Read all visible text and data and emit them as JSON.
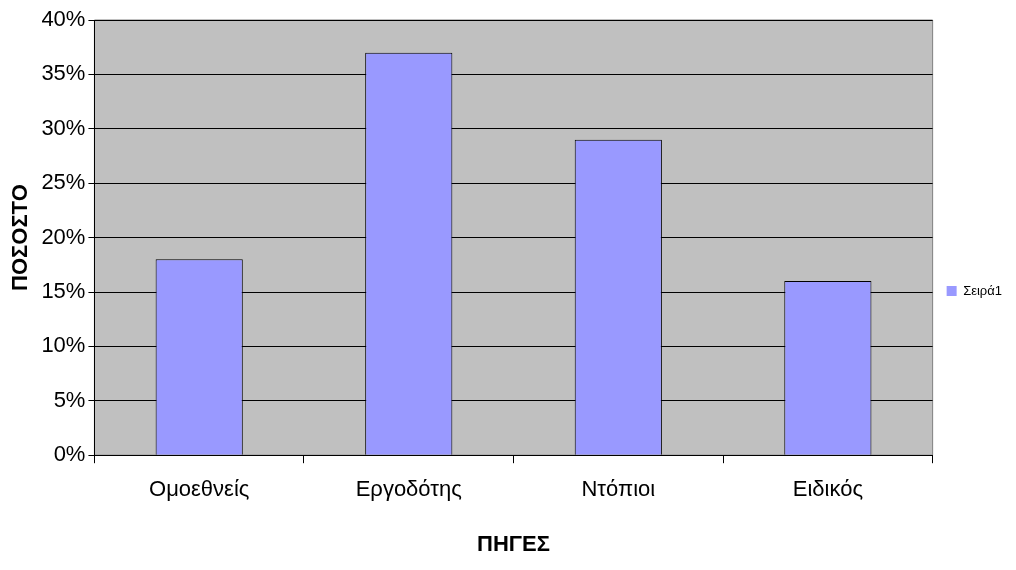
{
  "chart_data": {
    "type": "bar",
    "xlabel": "ΠΗΓΕΣ",
    "ylabel": "ΠΟΣΟΣΤΟ",
    "categories": [
      "Ομοεθνείς",
      "Εργοδότης",
      "Ντόπιοι",
      "Ειδικός"
    ],
    "series": [
      {
        "name": "Σειρά1",
        "color": "#9999ff",
        "values": [
          18,
          37,
          29,
          16
        ]
      }
    ],
    "ylim": [
      0,
      40
    ],
    "yticks": [
      {
        "value": 0,
        "label": "0%"
      },
      {
        "value": 5,
        "label": "5%"
      },
      {
        "value": 10,
        "label": "10%"
      },
      {
        "value": 15,
        "label": "15%"
      },
      {
        "value": 20,
        "label": "20%"
      },
      {
        "value": 25,
        "label": "25%"
      },
      {
        "value": 30,
        "label": "30%"
      },
      {
        "value": 35,
        "label": "35%"
      },
      {
        "value": 40,
        "label": "40%"
      }
    ],
    "grid": "y",
    "legend": "right"
  }
}
